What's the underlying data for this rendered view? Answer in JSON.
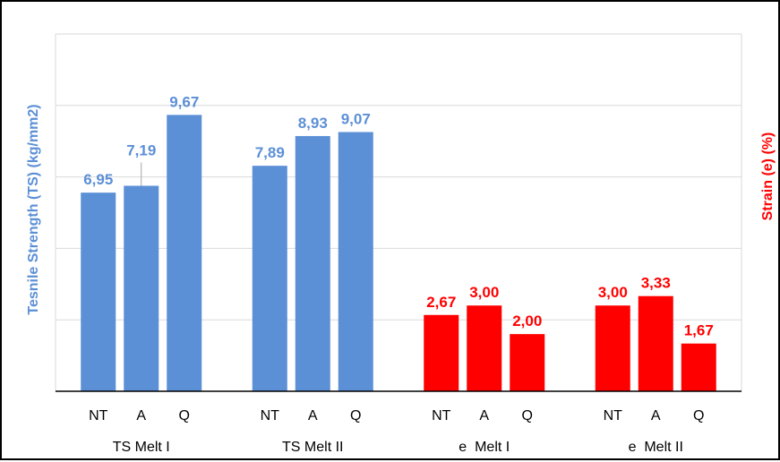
{
  "chart_data": {
    "type": "bar",
    "title": "",
    "ylabel": "Tesnile Strength (TS)  (kg/mm2)",
    "y2label": "Strain (e)  (%)",
    "ylim": [
      0,
      12.5
    ],
    "y_gridlines": [
      0,
      2.5,
      5,
      7.5,
      10,
      12.5
    ],
    "grid": true,
    "decimal_separator": ",",
    "groups": [
      {
        "label": "TS Melt I",
        "color": "#5B8FD6",
        "bars": [
          {
            "category": "NT",
            "value": 6.95,
            "label": "6,95"
          },
          {
            "category": "A",
            "value": 7.19,
            "label": "7,19"
          },
          {
            "category": "Q",
            "value": 9.67,
            "label": "9,67"
          }
        ]
      },
      {
        "label": "TS Melt II",
        "color": "#5B8FD6",
        "bars": [
          {
            "category": "NT",
            "value": 7.89,
            "label": "7,89"
          },
          {
            "category": "A",
            "value": 8.93,
            "label": "8,93"
          },
          {
            "category": "Q",
            "value": 9.07,
            "label": "9,07"
          }
        ]
      },
      {
        "label": "e  Melt I",
        "color": "#FF0000",
        "bars": [
          {
            "category": "NT",
            "value": 2.67,
            "label": "2,67"
          },
          {
            "category": "A",
            "value": 3.0,
            "label": "3,00"
          },
          {
            "category": "Q",
            "value": 2.0,
            "label": "2,00"
          }
        ]
      },
      {
        "label": "e  Melt II",
        "color": "#FF0000",
        "bars": [
          {
            "category": "NT",
            "value": 3.0,
            "label": "3,00"
          },
          {
            "category": "A",
            "value": 3.33,
            "label": "3,33"
          },
          {
            "category": "Q",
            "value": 1.67,
            "label": "1,67"
          }
        ]
      }
    ],
    "colors": {
      "ts_axis_title": "#5B8FD6",
      "strain_axis_title": "#FF0000",
      "ts_value_label": "#5B8FD6",
      "strain_value_label": "#FF0000",
      "gridline": "#D9D9D9",
      "axis": "#000000"
    }
  }
}
